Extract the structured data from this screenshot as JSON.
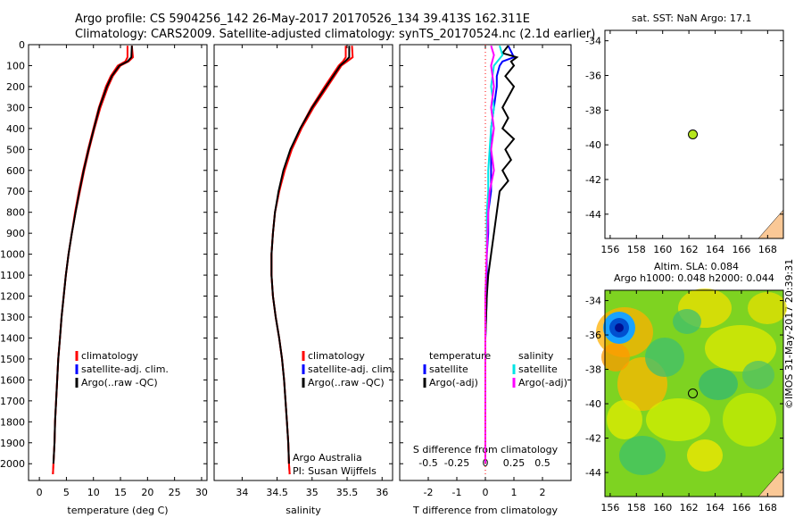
{
  "title_line1": "Argo profile: CS 5904256_142 26-May-2017 20170526_134 39.413S 162.311E",
  "title_line2": "Climatology: CARS2009. Satellite-adjusted climatology: synTS_20170524.nc (2.1d earlier)",
  "map_top_title": "sat. SST: NaN Argo: 17.1",
  "map_bottom_title1": "Altim. SLA: 0.084",
  "map_bottom_title2": "Argo h1000: 0.048 h2000: 0.044",
  "side_credit": "©IMOS 31-May-2017 20:39:31",
  "colors": {
    "climatology": "#ff0000",
    "satellite": "#0000ff",
    "argo": "#000000",
    "cyan": "#00e5e5",
    "magenta": "#ff00ff",
    "marker": "#b5e61d"
  },
  "chart_data": [
    {
      "type": "line",
      "xlabel": "temperature (deg C)",
      "xlim": [
        -2,
        31
      ],
      "xticks": [
        0,
        5,
        10,
        15,
        20,
        25,
        30
      ],
      "ylim": [
        2080,
        0
      ],
      "yticks": [
        0,
        100,
        200,
        300,
        400,
        500,
        600,
        700,
        800,
        900,
        1000,
        1100,
        1200,
        1300,
        1400,
        1500,
        1600,
        1700,
        1800,
        1900,
        2000
      ],
      "legend": [
        "climatology",
        "satellite-adj. clim.",
        "Argo(..raw -QC)"
      ],
      "series": [
        {
          "name": "climatology",
          "y": [
            5,
            60,
            80,
            100,
            150,
            200,
            300,
            400,
            500,
            600,
            700,
            800,
            900,
            1000,
            1100,
            1200,
            1300,
            1400,
            1500,
            1600,
            1700,
            1800,
            1900,
            2000,
            2050
          ],
          "x": [
            16.3,
            16.3,
            15.9,
            14.5,
            13.2,
            12.3,
            11.0,
            10.0,
            9.0,
            8.1,
            7.3,
            6.6,
            6.0,
            5.4,
            4.9,
            4.5,
            4.1,
            3.8,
            3.5,
            3.3,
            3.1,
            2.9,
            2.8,
            2.6,
            2.5
          ]
        },
        {
          "name": "satellite-adj. clim.",
          "y": [
            5,
            60,
            80,
            100,
            150,
            200,
            300,
            400,
            500,
            600,
            700,
            800,
            900,
            1000,
            1100,
            1200,
            1300,
            1400,
            1500,
            1600,
            1700,
            1800,
            1900,
            2000,
            2050
          ],
          "x": [
            17.1,
            17.3,
            16.5,
            15.0,
            13.6,
            12.7,
            11.3,
            10.2,
            9.2,
            8.3,
            7.5,
            6.7,
            6.0,
            5.4,
            4.9,
            4.5,
            4.1,
            3.8,
            3.5,
            3.3,
            3.1,
            2.9,
            2.8,
            2.6,
            2.5
          ]
        },
        {
          "name": "Argo(..raw -QC)",
          "y": [
            5,
            60,
            80,
            100,
            150,
            200,
            300,
            400,
            500,
            600,
            700,
            800,
            900,
            1000,
            1100,
            1200,
            1300,
            1400,
            1500,
            1600,
            1700,
            1800,
            1900,
            2000
          ],
          "x": [
            17.1,
            17.0,
            16.3,
            14.8,
            13.4,
            12.5,
            11.1,
            10.1,
            9.1,
            8.2,
            7.4,
            6.7,
            6.0,
            5.4,
            4.9,
            4.5,
            4.1,
            3.8,
            3.5,
            3.3,
            3.1,
            2.9,
            2.8,
            2.6
          ]
        }
      ]
    },
    {
      "type": "line",
      "xlabel": "salinity",
      "xlim": [
        33.6,
        36.15
      ],
      "xticks": [
        34,
        34.5,
        35,
        35.5,
        36
      ],
      "ylim": [
        2080,
        0
      ],
      "legend": [
        "climatology",
        "satellite-adj. clim.",
        "Argo(..raw -QC)"
      ],
      "annotation": [
        "Argo Australia",
        "PI: Susan Wijffels"
      ],
      "series": [
        {
          "name": "climatology",
          "y": [
            5,
            60,
            80,
            100,
            200,
            300,
            400,
            500,
            600,
            700,
            800,
            900,
            1000,
            1100,
            1200,
            1300,
            1400,
            1500,
            1600,
            1700,
            1800,
            1900,
            2000,
            2050
          ],
          "x": [
            35.48,
            35.48,
            35.44,
            35.38,
            35.18,
            34.99,
            34.83,
            34.7,
            34.6,
            34.53,
            34.47,
            34.44,
            34.42,
            34.42,
            34.44,
            34.48,
            34.53,
            34.57,
            34.6,
            34.62,
            34.64,
            34.66,
            34.67,
            34.68
          ]
        },
        {
          "name": "satellite-adj. clim.",
          "y": [
            5,
            60,
            80,
            100,
            200,
            300,
            400,
            500,
            600,
            700,
            800,
            900,
            1000,
            1100,
            1200,
            1300,
            1400,
            1500,
            1600,
            1700,
            1800,
            1900,
            2000,
            2050
          ],
          "x": [
            35.57,
            35.58,
            35.5,
            35.42,
            35.22,
            35.02,
            34.85,
            34.71,
            34.61,
            34.53,
            34.47,
            34.44,
            34.42,
            34.42,
            34.44,
            34.48,
            34.53,
            34.57,
            34.6,
            34.62,
            34.64,
            34.66,
            34.67,
            34.68
          ]
        },
        {
          "name": "Argo(..raw -QC)",
          "y": [
            5,
            60,
            80,
            100,
            200,
            300,
            400,
            500,
            600,
            700,
            800,
            900,
            1000,
            1100,
            1200,
            1300,
            1400,
            1500,
            1600,
            1700,
            1800,
            1900,
            2000
          ],
          "x": [
            35.53,
            35.53,
            35.47,
            35.4,
            35.2,
            35.0,
            34.83,
            34.69,
            34.59,
            34.52,
            34.47,
            34.44,
            34.42,
            34.42,
            34.44,
            34.48,
            34.53,
            34.57,
            34.6,
            34.62,
            34.64,
            34.66,
            34.67
          ]
        }
      ]
    },
    {
      "type": "line",
      "xlabel": "T difference from climatology",
      "top_label": "S difference from climatology",
      "xlim": [
        -3,
        3
      ],
      "xticks": [
        -2,
        -1,
        0,
        1,
        2
      ],
      "top_ticks": [
        "-0.5",
        "-0.25",
        "0",
        "0.25",
        "0.5"
      ],
      "top_tick_values": [
        -2,
        -1,
        0,
        1,
        2
      ],
      "ylim": [
        2080,
        0
      ],
      "legend_temperature": [
        "temperature",
        "satellite",
        "Argo(-adj)"
      ],
      "legend_salinity": [
        "salinity",
        "satellite",
        "Argo(-adj)"
      ],
      "series": [
        {
          "name": "T satellite",
          "y": [
            5,
            60,
            80,
            100,
            150,
            200,
            300,
            400,
            500,
            600,
            700,
            800,
            900,
            1000,
            1200,
            1400,
            1600,
            1800,
            2000
          ],
          "x": [
            0.8,
            1.0,
            0.6,
            0.5,
            0.4,
            0.4,
            0.3,
            0.2,
            0.2,
            0.2,
            0.2,
            0.1,
            0.1,
            0.05,
            0.05,
            0,
            0,
            0,
            0
          ]
        },
        {
          "name": "T Argo",
          "y": [
            5,
            40,
            60,
            80,
            100,
            150,
            200,
            300,
            350,
            400,
            450,
            500,
            550,
            600,
            650,
            700,
            800,
            900,
            1000,
            1100,
            1200,
            1400,
            1600,
            1800,
            2000
          ],
          "x": [
            0.8,
            0.6,
            1.1,
            0.9,
            1.0,
            0.7,
            1.0,
            0.6,
            0.8,
            0.6,
            1.0,
            0.7,
            0.9,
            0.6,
            0.8,
            0.5,
            0.4,
            0.3,
            0.2,
            0.1,
            0.05,
            0,
            0,
            0,
            0
          ]
        },
        {
          "name": "S satellite",
          "y": [
            5,
            50,
            100,
            200,
            300,
            400,
            500,
            600,
            700,
            800,
            1000,
            1200,
            1400,
            1600,
            1800,
            2000
          ],
          "x": [
            0.5,
            0.6,
            0.3,
            0.2,
            0.3,
            0.2,
            0.15,
            0.1,
            0.1,
            0.05,
            0.05,
            0,
            0,
            0,
            0,
            0
          ]
        },
        {
          "name": "S Argo",
          "y": [
            5,
            50,
            100,
            200,
            300,
            400,
            500,
            600,
            700,
            800,
            1000,
            1200,
            1400,
            1600,
            1800,
            2000
          ],
          "x": [
            0.2,
            0.3,
            0.2,
            0.3,
            0.2,
            0.3,
            0.2,
            0.3,
            0.15,
            0.1,
            0.05,
            0,
            0,
            0,
            0,
            0
          ]
        },
        {
          "name": "climatology",
          "y": [
            0,
            2050
          ],
          "x": [
            0,
            0
          ]
        }
      ]
    },
    {
      "type": "scatter",
      "panel": "sat SST map",
      "xlim": [
        155.6,
        169.2
      ],
      "ylim": [
        -45.4,
        -33.4
      ],
      "xticks": [
        156,
        158,
        160,
        162,
        164,
        166,
        168
      ],
      "yticks": [
        -34,
        -36,
        -38,
        -40,
        -42,
        -44
      ],
      "points": [
        {
          "x": 162.3,
          "y": -39.4
        }
      ]
    },
    {
      "type": "heatmap",
      "panel": "altimetry SLA map",
      "xlim": [
        155.6,
        169.2
      ],
      "ylim": [
        -45.4,
        -33.4
      ],
      "xticks": [
        156,
        158,
        160,
        162,
        164,
        166,
        168
      ],
      "yticks": [
        -34,
        -36,
        -38,
        -40,
        -42,
        -44
      ],
      "points": [
        {
          "x": 162.3,
          "y": -39.4
        }
      ]
    }
  ]
}
